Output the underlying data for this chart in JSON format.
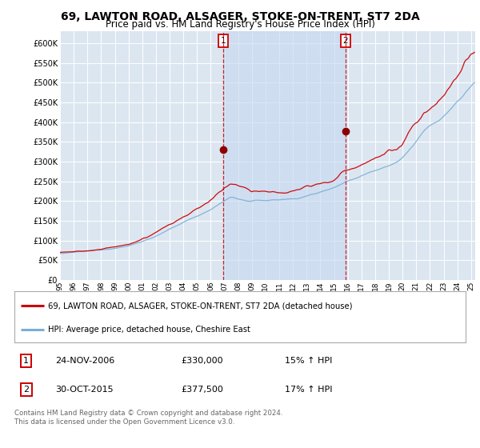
{
  "title": "69, LAWTON ROAD, ALSAGER, STOKE-ON-TRENT, ST7 2DA",
  "subtitle": "Price paid vs. HM Land Registry's House Price Index (HPI)",
  "title_fontsize": 10,
  "subtitle_fontsize": 8.5,
  "background_color": "#ffffff",
  "plot_bg_color": "#dce6f1",
  "shade_color": "#c5d8f0",
  "grid_color": "#ffffff",
  "ylim": [
    0,
    630000
  ],
  "yticks": [
    0,
    50000,
    100000,
    150000,
    200000,
    250000,
    300000,
    350000,
    400000,
    450000,
    500000,
    550000,
    600000
  ],
  "sale1_date": 2006.9,
  "sale1_price": 330000,
  "sale1_label": "1",
  "sale2_date": 2015.83,
  "sale2_price": 377500,
  "sale2_label": "2",
  "legend_line1": "69, LAWTON ROAD, ALSAGER, STOKE-ON-TRENT, ST7 2DA (detached house)",
  "legend_line2": "HPI: Average price, detached house, Cheshire East",
  "table_row1": [
    "1",
    "24-NOV-2006",
    "£330,000",
    "15% ↑ HPI"
  ],
  "table_row2": [
    "2",
    "30-OCT-2015",
    "£377,500",
    "17% ↑ HPI"
  ],
  "footer": "Contains HM Land Registry data © Crown copyright and database right 2024.\nThis data is licensed under the Open Government Licence v3.0.",
  "line_color_red": "#cc0000",
  "line_color_blue": "#7aafd4",
  "vline_color": "#cc0000",
  "xmin": 1995,
  "xmax": 2025.3
}
